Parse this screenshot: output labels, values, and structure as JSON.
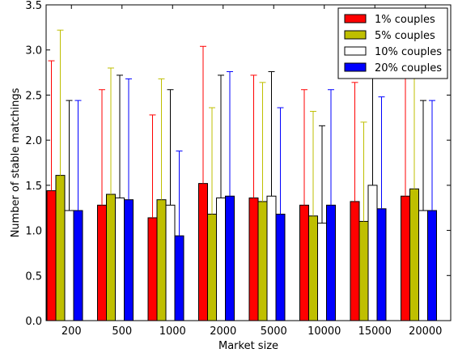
{
  "chart_data": {
    "type": "bar",
    "xlabel": "Market size",
    "ylabel": "Number of stable matchings",
    "ylim": [
      0,
      3.5
    ],
    "yticks": [
      "0.0",
      "0.5",
      "1.0",
      "1.5",
      "2.0",
      "2.5",
      "3.0",
      "3.5"
    ],
    "categories": [
      "200",
      "500",
      "1000",
      "2000",
      "5000",
      "10000",
      "15000",
      "20000"
    ],
    "legend_position": "top-right",
    "error_bars": true,
    "series": [
      {
        "name": "1% couples",
        "color": "#ff0000",
        "values": [
          1.44,
          1.28,
          1.14,
          1.52,
          1.36,
          1.28,
          1.32,
          1.38
        ],
        "upper": [
          2.88,
          2.56,
          2.28,
          3.04,
          2.72,
          2.56,
          2.64,
          2.76
        ]
      },
      {
        "name": "5% couples",
        "color": "#bfbf00",
        "values": [
          1.61,
          1.4,
          1.34,
          1.18,
          1.32,
          1.16,
          1.1,
          1.46
        ],
        "upper": [
          3.22,
          2.8,
          2.68,
          2.36,
          2.64,
          2.32,
          2.2,
          2.92
        ]
      },
      {
        "name": "10% couples",
        "color": "#ffffff",
        "values": [
          1.22,
          1.36,
          1.28,
          1.36,
          1.38,
          1.08,
          1.5,
          1.22
        ],
        "upper": [
          2.44,
          2.72,
          2.56,
          2.72,
          2.76,
          2.16,
          3.0,
          2.44
        ]
      },
      {
        "name": "20% couples",
        "color": "#0000ff",
        "values": [
          1.22,
          1.34,
          0.94,
          1.38,
          1.18,
          1.28,
          1.24,
          1.22
        ],
        "upper": [
          2.44,
          2.68,
          1.88,
          2.76,
          2.36,
          2.56,
          2.48,
          2.44
        ]
      }
    ]
  }
}
